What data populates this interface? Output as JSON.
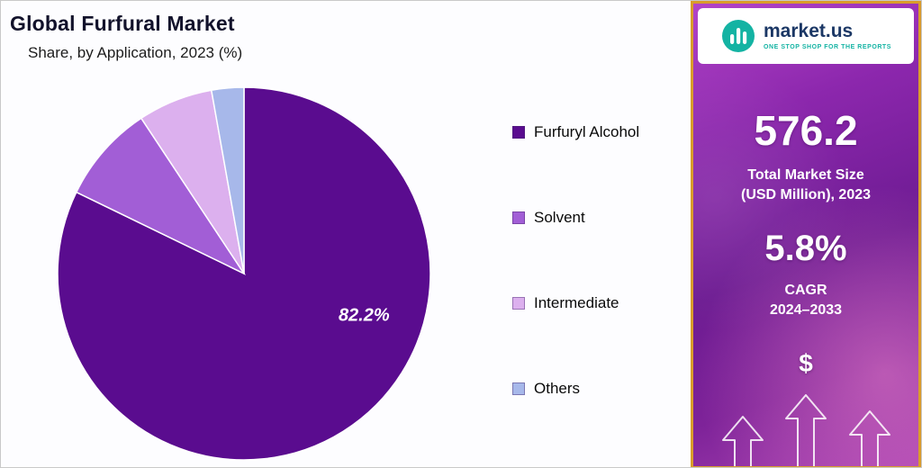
{
  "header": {
    "title": "Global Furfural Market",
    "subtitle": "Share, by Application, 2023 (%)"
  },
  "chart_data": {
    "type": "pie",
    "title": "Global Furfural Market",
    "subtitle": "Share, by Application, 2023 (%)",
    "categories": [
      "Furfuryl Alcohol",
      "Solvent",
      "Intermediate",
      "Others"
    ],
    "values": [
      82.2,
      8.5,
      6.5,
      2.8
    ],
    "colors": [
      "#5a0c8f",
      "#a25ed6",
      "#dcb0ee",
      "#a7b8ea"
    ],
    "start_angle_deg": 0,
    "direction": "clockwise",
    "legend_position": "right",
    "data_labels": [
      {
        "category": "Furfuryl Alcohol",
        "text": "82.2%"
      }
    ]
  },
  "legend": {
    "items": [
      {
        "label": "Furfuryl Alcohol",
        "color": "#5a0c8f"
      },
      {
        "label": "Solvent",
        "color": "#a25ed6"
      },
      {
        "label": "Intermediate",
        "color": "#dcb0ee"
      },
      {
        "label": "Others",
        "color": "#a7b8ea"
      }
    ]
  },
  "sidebar": {
    "border_color": "#d99c2b",
    "logo": {
      "brand": "market.us",
      "tagline": "One Stop Shop For The Reports",
      "accent_color": "#14b3a3",
      "text_color": "#1b3765"
    },
    "market_size": {
      "value": "576.2",
      "label_line1": "Total Market Size",
      "label_line2": "(USD Million), 2023"
    },
    "cagr": {
      "value": "5.8%",
      "label_line1": "CAGR",
      "label_line2": "2024–2033"
    },
    "dollar_icon": "$"
  }
}
